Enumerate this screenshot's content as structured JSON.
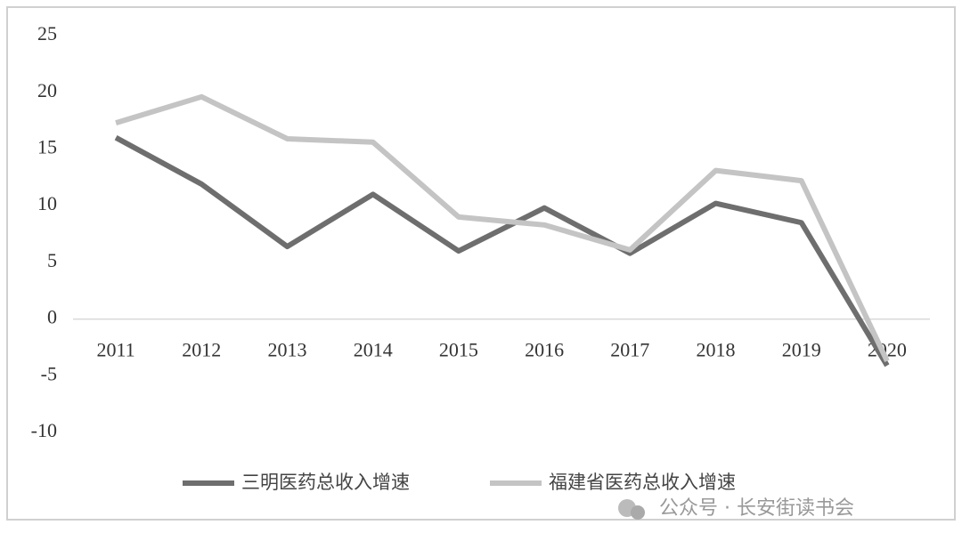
{
  "chart_data": {
    "type": "line",
    "categories": [
      "2011",
      "2012",
      "2013",
      "2014",
      "2015",
      "2016",
      "2017",
      "2018",
      "2019",
      "2020"
    ],
    "series": [
      {
        "name": "三明医药总收入增速",
        "color": "#6e6e6e",
        "values": [
          16.0,
          11.9,
          6.4,
          11.0,
          6.0,
          9.8,
          5.8,
          10.2,
          8.5,
          -4.1
        ]
      },
      {
        "name": "福建省医药总收入增速",
        "color": "#c4c4c4",
        "values": [
          17.3,
          19.6,
          15.9,
          15.6,
          9.0,
          8.3,
          6.1,
          13.1,
          12.2,
          -3.7
        ]
      }
    ],
    "ylim": [
      -10,
      25
    ],
    "yticks": [
      25,
      20,
      15,
      10,
      5,
      0,
      -5,
      -10
    ],
    "legend": "bottom",
    "watermark": "公众号 · 长安街读书会"
  }
}
